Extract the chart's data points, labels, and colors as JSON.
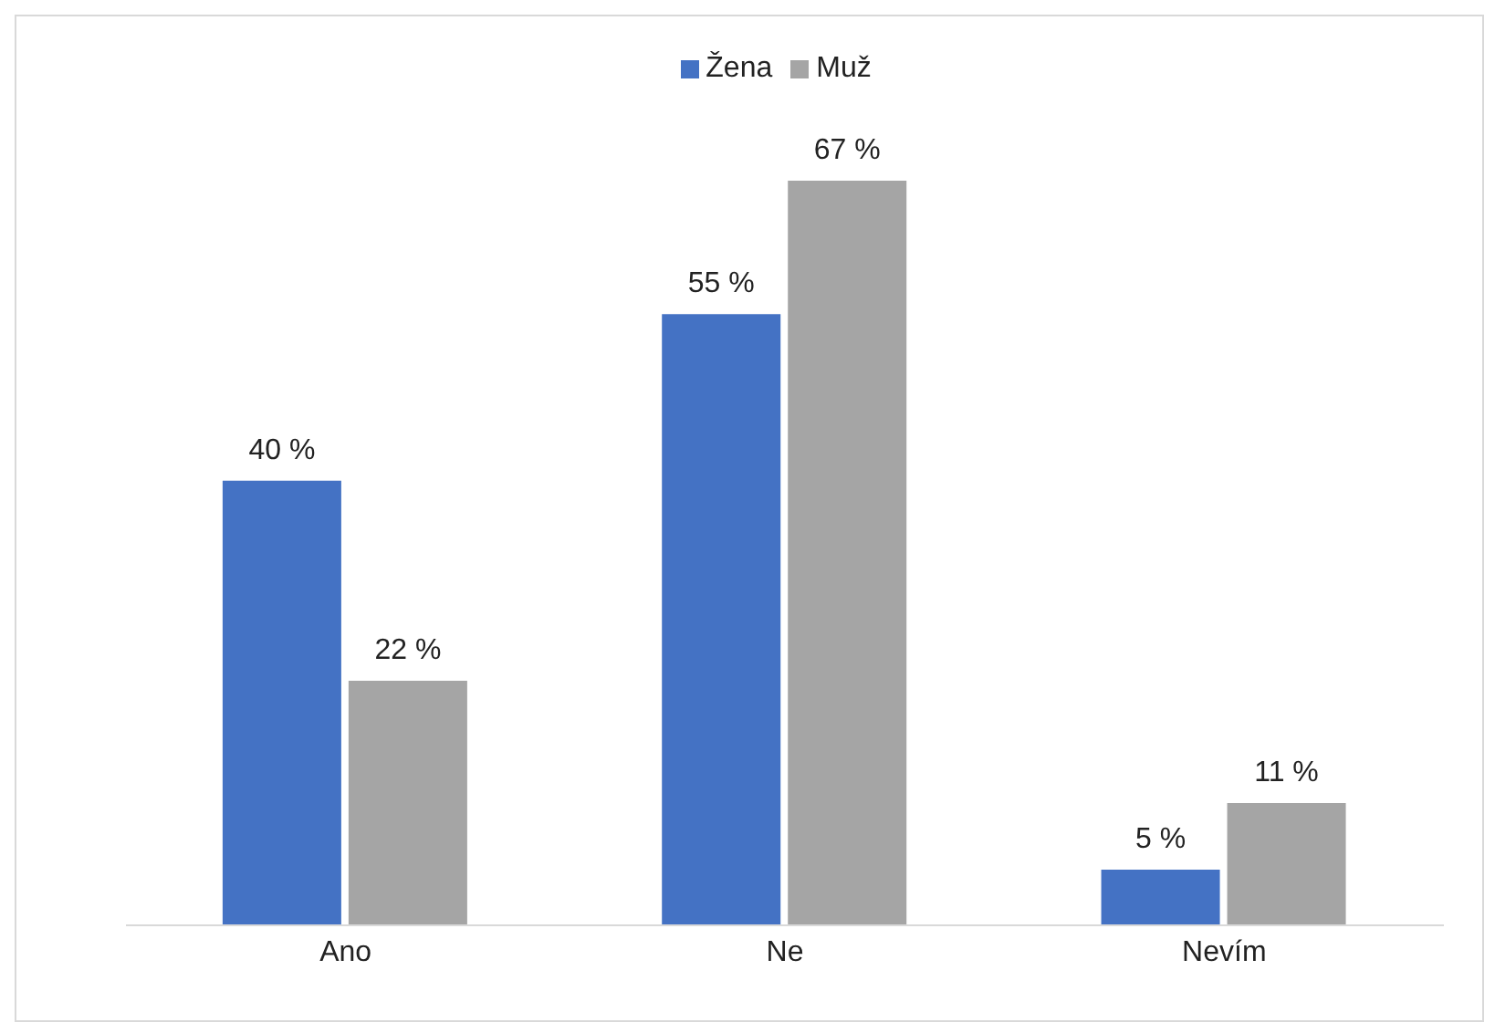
{
  "chart_data": {
    "type": "bar",
    "categories": [
      "Ano",
      "Ne",
      "Nevím"
    ],
    "series": [
      {
        "name": "Žena",
        "color": "#4472c4",
        "values": [
          40,
          55,
          5
        ],
        "value_labels": [
          "40 %",
          "55 %",
          "5 %"
        ]
      },
      {
        "name": "Muž",
        "color": "#a5a5a5",
        "values": [
          22,
          67,
          11
        ],
        "value_labels": [
          "22 %",
          "67 %",
          "11 %"
        ]
      }
    ],
    "legend": "top",
    "grid": false
  }
}
